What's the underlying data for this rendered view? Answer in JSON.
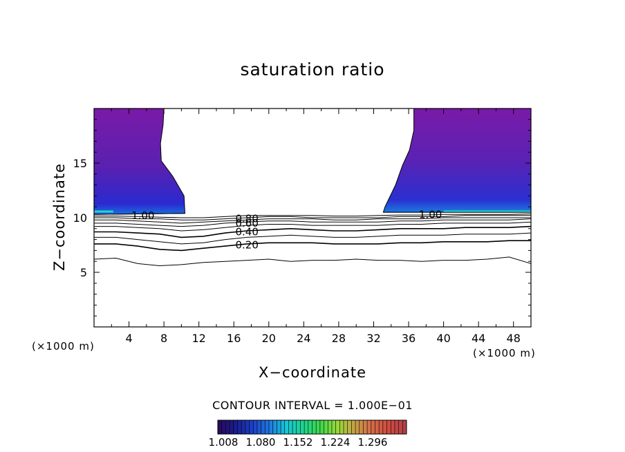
{
  "chart_data": {
    "type": "contour",
    "title": "saturation ratio",
    "xlabel": "X−coordinate",
    "ylabel": "Z−coordinate",
    "x_unit_label": "(×1000 m)",
    "x_ticks": [
      "4",
      "8",
      "12",
      "16",
      "20",
      "24",
      "28",
      "32",
      "36",
      "40",
      "44",
      "48"
    ],
    "y_ticks": [
      "5",
      "10",
      "15"
    ],
    "xlim": [
      0,
      50
    ],
    "ylim": [
      0,
      20
    ],
    "contour_interval_text": "CONTOUR INTERVAL = 1.000E−01",
    "contour_labels": [
      {
        "text": "1.00",
        "x": 5.6,
        "z": 10.2
      },
      {
        "text": "1.00",
        "x": 38.5,
        "z": 10.3
      },
      {
        "text": "0.80",
        "x": 17.5,
        "z": 9.9
      },
      {
        "text": "0.60",
        "x": 17.5,
        "z": 9.5
      },
      {
        "text": "0.40",
        "x": 17.5,
        "z": 8.7
      },
      {
        "text": "0.20",
        "x": 17.5,
        "z": 7.5
      }
    ],
    "contour_lines": [
      {
        "level": 0.1,
        "z": [
          6.2,
          6.3,
          5.8,
          5.6,
          5.7,
          5.9,
          6.0,
          6.1,
          6.2,
          6.0,
          6.1,
          6.1,
          6.2,
          6.1,
          6.1,
          6.0,
          6.1,
          6.1,
          6.2,
          6.4,
          5.8
        ]
      },
      {
        "level": 0.2,
        "z": [
          7.6,
          7.6,
          7.4,
          7.1,
          7.0,
          7.2,
          7.4,
          7.6,
          7.7,
          7.7,
          7.7,
          7.6,
          7.6,
          7.6,
          7.7,
          7.7,
          7.8,
          7.8,
          7.8,
          7.9,
          7.9
        ]
      },
      {
        "level": 0.3,
        "z": [
          8.2,
          8.2,
          8.0,
          7.8,
          7.6,
          7.7,
          8.0,
          8.2,
          8.3,
          8.4,
          8.3,
          8.2,
          8.2,
          8.3,
          8.4,
          8.4,
          8.4,
          8.5,
          8.5,
          8.5,
          8.6
        ]
      },
      {
        "level": 0.4,
        "z": [
          8.7,
          8.7,
          8.6,
          8.5,
          8.2,
          8.3,
          8.6,
          8.8,
          8.9,
          9.0,
          8.9,
          8.8,
          8.8,
          8.9,
          9.0,
          9.0,
          9.0,
          9.1,
          9.1,
          9.1,
          9.2
        ]
      },
      {
        "level": 0.5,
        "z": [
          9.2,
          9.2,
          9.1,
          9.0,
          8.8,
          8.9,
          9.1,
          9.3,
          9.4,
          9.4,
          9.3,
          9.3,
          9.3,
          9.3,
          9.4,
          9.4,
          9.5,
          9.5,
          9.5,
          9.5,
          9.6
        ]
      },
      {
        "level": 0.6,
        "z": [
          9.5,
          9.5,
          9.4,
          9.3,
          9.2,
          9.3,
          9.5,
          9.6,
          9.7,
          9.7,
          9.6,
          9.6,
          9.6,
          9.6,
          9.7,
          9.7,
          9.8,
          9.8,
          9.8,
          9.8,
          9.9
        ]
      },
      {
        "level": 0.7,
        "z": [
          9.8,
          9.8,
          9.7,
          9.6,
          9.5,
          9.6,
          9.7,
          9.8,
          9.9,
          9.9,
          9.9,
          9.8,
          9.8,
          9.9,
          9.9,
          9.9,
          10.0,
          10.0,
          10.0,
          10.0,
          10.0
        ]
      },
      {
        "level": 0.8,
        "z": [
          10.0,
          10.0,
          9.9,
          9.9,
          9.8,
          9.8,
          9.9,
          10.0,
          10.1,
          10.1,
          10.0,
          10.0,
          10.0,
          10.0,
          10.1,
          10.1,
          10.1,
          10.2,
          10.2,
          10.2,
          10.2
        ]
      },
      {
        "level": 0.9,
        "z": [
          10.15,
          10.15,
          10.1,
          10.05,
          10.0,
          10.0,
          10.1,
          10.2,
          10.2,
          10.2,
          10.2,
          10.15,
          10.15,
          10.2,
          10.25,
          10.25,
          10.3,
          10.3,
          10.3,
          10.3,
          10.35
        ]
      }
    ],
    "contour_x": [
      0,
      2.5,
      5,
      7.5,
      10,
      12.5,
      15,
      17.5,
      20,
      22.5,
      25,
      27.5,
      30,
      32.5,
      35,
      37.5,
      40,
      42.5,
      45,
      47.5,
      50
    ],
    "supersaturated_regions": [
      {
        "name": "left",
        "boundary": [
          [
            0,
            20
          ],
          [
            8.0,
            20
          ],
          [
            7.9,
            18.5
          ],
          [
            7.6,
            16.8
          ],
          [
            7.7,
            15.2
          ],
          [
            9.0,
            13.8
          ],
          [
            10.3,
            12.0
          ],
          [
            10.4,
            10.4
          ],
          [
            0,
            10.3
          ]
        ]
      },
      {
        "name": "right",
        "boundary": [
          [
            36.6,
            20
          ],
          [
            50,
            20
          ],
          [
            50,
            10.5
          ],
          [
            33.1,
            10.5
          ],
          [
            33.3,
            11.0
          ],
          [
            34.5,
            13.0
          ],
          [
            35.3,
            14.8
          ],
          [
            36.1,
            16.2
          ],
          [
            36.6,
            18.0
          ]
        ]
      }
    ],
    "colorbar": {
      "labels": [
        "1.008",
        "1.080",
        "1.152",
        "1.224",
        "1.296"
      ],
      "min": 0.99,
      "max": 1.33,
      "colors": [
        "#2a0a5c",
        "#1a1c8a",
        "#1b3fc8",
        "#1f78e0",
        "#16c7d8",
        "#1ed48c",
        "#3fd84a",
        "#9bd93a",
        "#c7a044",
        "#d56a48",
        "#d04a40",
        "#b0404a"
      ]
    }
  }
}
